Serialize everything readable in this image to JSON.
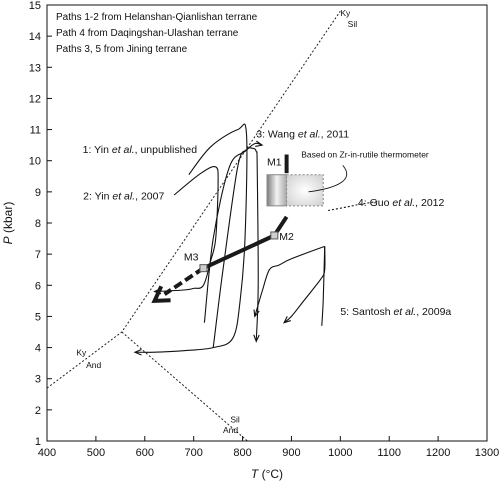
{
  "chart_data": {
    "type": "line",
    "xlim": [
      400,
      1300
    ],
    "ylim": [
      1,
      15
    ],
    "x_ticks": [
      "400",
      "500",
      "600",
      "700",
      "800",
      "900",
      "1000",
      "1100",
      "1200",
      "1300"
    ],
    "y_ticks": [
      "1",
      "2",
      "3",
      "4",
      "5",
      "6",
      "7",
      "8",
      "9",
      "10",
      "11",
      "12",
      "13",
      "14",
      "15"
    ],
    "xlabel": {
      "var": "T",
      "unit": " (°C)"
    },
    "ylabel": {
      "var": "P",
      "unit": " (kbar)"
    },
    "notes": [
      "Paths 1-2 from Helanshan-Qianlishan terrane",
      "Path 4 from Daqingshan-Ulashan terrane",
      "Paths 3, 5 from Jining terrane"
    ],
    "path_labels": [
      {
        "pre": "1: Yin ",
        "em": "et al.",
        "post": ", unpublished",
        "x": 590,
        "y": 10.25
      },
      {
        "pre": "2: Yin ",
        "em": "et al.",
        "post": ", 2007",
        "x": 557,
        "y": 8.75
      },
      {
        "pre": "3: Wang ",
        "em": "et al.",
        "post": ", 2011",
        "x": 828,
        "y": 10.75
      },
      {
        "pre": "4: Guo ",
        "em": "et al.",
        "post": ", 2012",
        "x": 1036,
        "y": 8.55
      },
      {
        "pre": "5: Santosh ",
        "em": "et al.",
        "post": ", 2009a",
        "x": 1000,
        "y": 5.05
      }
    ],
    "phase_labels": [
      {
        "text": "Ky",
        "x": 1000,
        "y": 14.65
      },
      {
        "text": "Sil",
        "x": 1015,
        "y": 14.3
      },
      {
        "text": "Ky",
        "x": 460,
        "y": 3.75
      },
      {
        "text": "And",
        "x": 480,
        "y": 3.35
      },
      {
        "text": "Sil",
        "x": 775,
        "y": 1.6
      },
      {
        "text": "And",
        "x": 760,
        "y": 1.25
      }
    ],
    "zircon_label": {
      "text": "Based on Zr-in-rutile thermometer",
      "x": 920,
      "y": 10.1
    },
    "stage_labels": [
      {
        "text": "M1",
        "x": 850,
        "y": 9.85
      },
      {
        "text": "M2",
        "x": 875,
        "y": 7.45
      },
      {
        "text": "M3",
        "x": 680,
        "y": 6.8
      }
    ],
    "reaction_lines": [
      {
        "name": "ky-sil",
        "points": [
          [
            400,
            2.7
          ],
          [
            553,
            4.5
          ],
          [
            1000,
            14.8
          ]
        ]
      },
      {
        "name": "and-sil",
        "points": [
          [
            553,
            4.5
          ],
          [
            810,
            1.0
          ]
        ]
      }
    ],
    "paths": [
      {
        "name": "path-1",
        "points": [
          [
            690,
            9.55
          ],
          [
            735,
            10.45
          ],
          [
            790,
            11.0
          ],
          [
            808,
            10.85
          ],
          [
            805,
            7.5
          ],
          [
            795,
            5.5
          ],
          [
            780,
            4.3
          ],
          [
            740,
            4.0
          ],
          [
            680,
            3.9
          ],
          [
            620,
            3.85
          ],
          [
            580,
            3.85
          ]
        ]
      },
      {
        "name": "path-2",
        "points": [
          [
            660,
            8.9
          ],
          [
            715,
            9.6
          ],
          [
            745,
            9.8
          ],
          [
            750,
            9.3
          ],
          [
            745,
            7.5
          ],
          [
            735,
            6.8
          ],
          [
            720,
            6.0
          ],
          [
            700,
            5.9
          ],
          [
            680,
            5.85
          ],
          [
            620,
            5.8
          ]
        ]
      },
      {
        "name": "path-3a",
        "points": [
          [
            722,
            4.8
          ],
          [
            740,
            7.5
          ],
          [
            773,
            9.8
          ],
          [
            805,
            10.3
          ],
          [
            825,
            10.55
          ],
          [
            840,
            10.5
          ]
        ]
      },
      {
        "name": "path-3b",
        "points": [
          [
            740,
            4.0
          ],
          [
            760,
            6.5
          ],
          [
            790,
            9.8
          ],
          [
            808,
            10.35
          ],
          [
            820,
            10.4
          ],
          [
            828,
            10.3
          ],
          [
            830,
            9.8
          ],
          [
            832,
            6.0
          ],
          [
            828,
            4.2
          ]
        ]
      },
      {
        "name": "path-4",
        "points": [
          [
            975,
            8.4
          ],
          [
            1015,
            8.52
          ],
          [
            1040,
            8.6
          ],
          [
            1080,
            8.7
          ]
        ]
      },
      {
        "name": "path-5",
        "points": [
          [
            968,
            7.25
          ],
          [
            900,
            6.85
          ],
          [
            875,
            6.65
          ],
          [
            855,
            6.5
          ],
          [
            840,
            5.8
          ],
          [
            825,
            5.0
          ]
        ],
        "alt": [
          [
            968,
            7.25
          ],
          [
            968,
            6.5
          ],
          [
            960,
            6.2
          ],
          [
            925,
            5.5
          ],
          [
            900,
            5.0
          ],
          [
            885,
            4.8
          ]
        ],
        "tail": [
          [
            968,
            7.25
          ],
          [
            965,
            5.5
          ],
          [
            962,
            4.7
          ]
        ]
      }
    ],
    "thick_segments": [
      [
        [
          890,
          10.2
        ],
        [
          890,
          9.6
        ]
      ],
      [
        [
          890,
          8.2
        ],
        [
          865,
          7.6
        ]
      ],
      [
        [
          865,
          7.6
        ],
        [
          720,
          6.55
        ]
      ]
    ],
    "thick_arrow": {
      "from": [
        720,
        6.55
      ],
      "to": [
        620,
        5.5
      ]
    },
    "rect_left": {
      "x": [
        850,
        890
      ],
      "y": [
        8.55,
        9.55
      ]
    },
    "rect_right": {
      "x": [
        890,
        965
      ],
      "y": [
        8.55,
        9.55
      ]
    },
    "marker_points": [
      [
        865,
        7.6
      ],
      [
        720,
        6.55
      ]
    ]
  }
}
